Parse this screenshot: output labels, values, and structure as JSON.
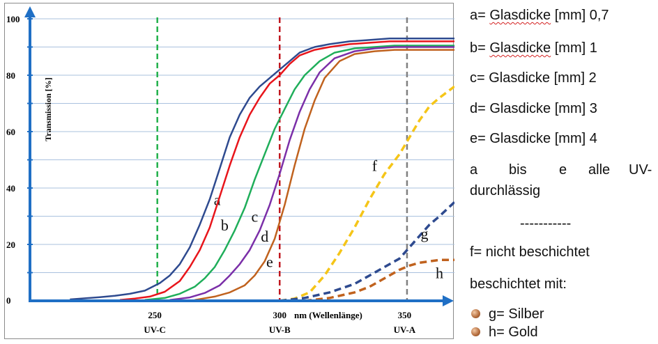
{
  "chart_data": {
    "type": "line",
    "ylabel": "Transmission [%]",
    "xlabel": "nm (Wellenlänge)",
    "xlim": [
      200,
      370
    ],
    "ylim": [
      0,
      100
    ],
    "y_ticks": [
      "0",
      "20",
      "40",
      "60",
      "80",
      "100"
    ],
    "x_ticks": [
      {
        "value": 250,
        "label": "250",
        "region": "UV-C"
      },
      {
        "value": 300,
        "label": "300",
        "region": "UV-B"
      },
      {
        "value": 350,
        "label": "350",
        "region": "UV-A"
      }
    ],
    "vlines": [
      {
        "x": 251,
        "color": "#22b14c"
      },
      {
        "x": 300,
        "color": "#c0181f"
      },
      {
        "x": 351,
        "color": "#808080"
      }
    ],
    "series": [
      {
        "name": "a",
        "color": "#2e4a8f",
        "dashed": false,
        "label_at": [
          275,
          34
        ],
        "x": [
          216,
          222,
          228,
          234,
          240,
          246,
          252,
          256,
          260,
          264,
          268,
          272,
          276,
          280,
          284,
          288,
          292,
          296,
          300,
          304,
          308,
          314,
          320,
          328,
          336,
          344,
          352,
          360,
          370
        ],
        "y": [
          0.5,
          0.9,
          1.3,
          1.8,
          2.5,
          3.6,
          6.3,
          9,
          13,
          19,
          27,
          36,
          47,
          58,
          66,
          72,
          76,
          79,
          82,
          85,
          88,
          90,
          91,
          92,
          92.5,
          93,
          93,
          93,
          93
        ]
      },
      {
        "name": "b",
        "color": "#e8151b",
        "dashed": false,
        "label_at": [
          278,
          25
        ],
        "x": [
          236,
          242,
          248,
          254,
          260,
          264,
          268,
          272,
          276,
          280,
          284,
          288,
          292,
          296,
          300,
          304,
          308,
          314,
          320,
          328,
          336,
          344,
          352,
          360,
          370
        ],
        "y": [
          0.3,
          0.8,
          1.5,
          3.2,
          7,
          12,
          18,
          26,
          37,
          48,
          58,
          66,
          72,
          77,
          80,
          84,
          87,
          89,
          90,
          91,
          91.5,
          92,
          92,
          92,
          92
        ]
      },
      {
        "name": "c",
        "color": "#1fae5a",
        "dashed": false,
        "label_at": [
          290,
          28
        ],
        "x": [
          246,
          254,
          260,
          266,
          270,
          274,
          278,
          282,
          286,
          290,
          294,
          298,
          302,
          306,
          310,
          316,
          322,
          330,
          338,
          346,
          354,
          362,
          370
        ],
        "y": [
          0.3,
          1,
          2.5,
          5,
          8,
          12,
          18,
          25,
          33,
          43,
          52,
          61,
          68,
          75,
          80,
          85,
          88,
          89.5,
          90,
          90.5,
          90.5,
          90.5,
          90.5
        ]
      },
      {
        "name": "d",
        "color": "#7b2fa8",
        "dashed": false,
        "label_at": [
          294,
          21
        ],
        "x": [
          256,
          264,
          270,
          276,
          280,
          284,
          288,
          292,
          296,
          300,
          304,
          308,
          312,
          316,
          322,
          330,
          338,
          346,
          354,
          362,
          370
        ],
        "y": [
          0.3,
          1.2,
          2.8,
          5.5,
          9,
          13,
          18,
          25,
          34,
          45,
          57,
          67,
          75,
          81,
          86,
          88.5,
          89.5,
          90,
          90,
          90,
          90
        ]
      },
      {
        "name": "e",
        "color": "#c0621e",
        "dashed": false,
        "label_at": [
          296,
          12
        ],
        "x": [
          266,
          274,
          280,
          286,
          290,
          294,
          298,
          302,
          306,
          310,
          314,
          318,
          324,
          330,
          338,
          346,
          354,
          362,
          370
        ],
        "y": [
          0.3,
          1.5,
          3,
          5.5,
          9,
          14,
          22,
          34,
          48,
          61,
          71,
          79,
          85,
          87.5,
          88.5,
          89,
          89,
          89,
          89
        ]
      },
      {
        "name": "f",
        "color": "#f5c518",
        "dashed": true,
        "label_at": [
          338,
          46
        ],
        "x": [
          300,
          306,
          312,
          318,
          324,
          330,
          336,
          342,
          348,
          352,
          356,
          360,
          364,
          370
        ],
        "y": [
          0,
          0.8,
          3,
          9,
          17,
          26,
          36,
          45,
          52,
          58,
          64,
          69,
          72,
          76
        ]
      },
      {
        "name": "g",
        "color": "#2e4a8f",
        "dashed": true,
        "label_at": [
          358,
          22
        ],
        "x": [
          300,
          310,
          320,
          330,
          336,
          342,
          348,
          352,
          356,
          360,
          364,
          370
        ],
        "y": [
          0,
          1,
          3,
          6,
          9,
          12,
          15,
          19,
          23,
          27,
          30,
          35
        ]
      },
      {
        "name": "h",
        "color": "#c0621e",
        "dashed": true,
        "label_at": [
          364,
          8
        ],
        "x": [
          310,
          320,
          330,
          336,
          342,
          348,
          352,
          356,
          360,
          364,
          370
        ],
        "y": [
          0,
          1,
          3,
          5,
          8,
          11,
          12.5,
          13.5,
          14,
          14.5,
          14.5
        ]
      }
    ]
  },
  "legend": {
    "a_pre": "a= ",
    "a_word": "Glasdicke",
    "a_post": " [mm] 0,7",
    "b_pre": "b= ",
    "b_word": "Glasdicke",
    "b_post": " [mm] 1",
    "c": "c= Glasdicke [mm] 2",
    "d": "d= Glasdicke [mm] 3",
    "e": "e= Glasdicke [mm] 4",
    "ae_words": [
      "a",
      "bis",
      "e",
      "alle",
      "UV-"
    ],
    "ae_line2": "durchlässig",
    "separator": "-----------",
    "f": "f= nicht beschichtet",
    "coated": "beschichtet mit:",
    "g": "g= Silber",
    "h": "h= Gold"
  }
}
